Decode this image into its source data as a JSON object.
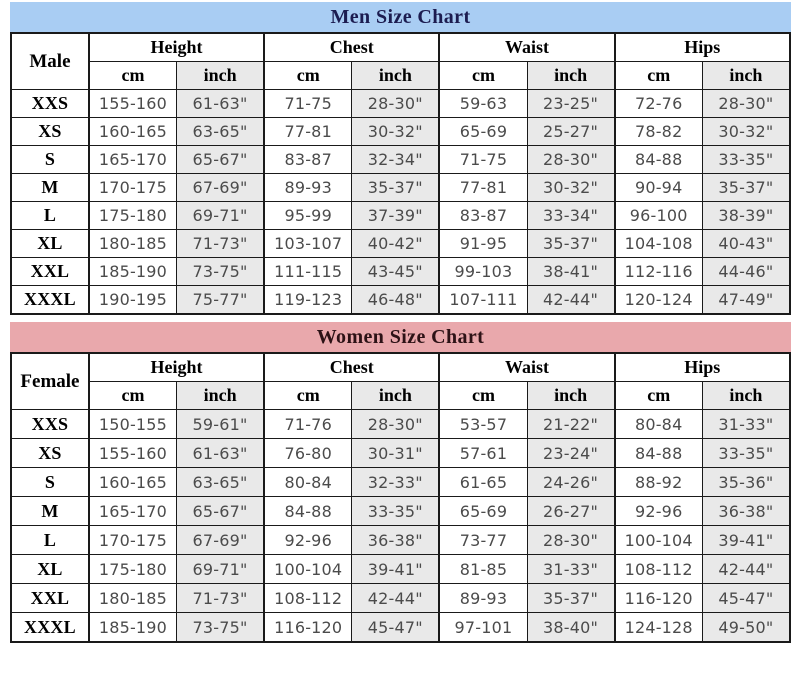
{
  "colors": {
    "men_title_bg": "#a9cdf3",
    "men_title_text": "#1c1c50",
    "women_title_bg": "#e9a8ac",
    "women_title_text": "#2d1216",
    "inch_column_bg": "#e9e9e9",
    "border": "#1a1a1a",
    "data_text": "#4b4b4b"
  },
  "men": {
    "title": "Men Size Chart",
    "corner_label": "Male",
    "groups": [
      "Height",
      "Chest",
      "Waist",
      "Hips"
    ],
    "subcolumns": [
      "cm",
      "inch"
    ],
    "rows": [
      {
        "size": "XXS",
        "cells": [
          "155-160",
          "61-63\"",
          "71-75",
          "28-30\"",
          "59-63",
          "23-25\"",
          "72-76",
          "28-30\""
        ]
      },
      {
        "size": "XS",
        "cells": [
          "160-165",
          "63-65\"",
          "77-81",
          "30-32\"",
          "65-69",
          "25-27\"",
          "78-82",
          "30-32\""
        ]
      },
      {
        "size": "S",
        "cells": [
          "165-170",
          "65-67\"",
          "83-87",
          "32-34\"",
          "71-75",
          "28-30\"",
          "84-88",
          "33-35\""
        ]
      },
      {
        "size": "M",
        "cells": [
          "170-175",
          "67-69\"",
          "89-93",
          "35-37\"",
          "77-81",
          "30-32\"",
          "90-94",
          "35-37\""
        ]
      },
      {
        "size": "L",
        "cells": [
          "175-180",
          "69-71\"",
          "95-99",
          "37-39\"",
          "83-87",
          "33-34\"",
          "96-100",
          "38-39\""
        ]
      },
      {
        "size": "XL",
        "cells": [
          "180-185",
          "71-73\"",
          "103-107",
          "40-42\"",
          "91-95",
          "35-37\"",
          "104-108",
          "40-43\""
        ]
      },
      {
        "size": "XXL",
        "cells": [
          "185-190",
          "73-75\"",
          "111-115",
          "43-45\"",
          "99-103",
          "38-41\"",
          "112-116",
          "44-46\""
        ]
      },
      {
        "size": "XXXL",
        "cells": [
          "190-195",
          "75-77\"",
          "119-123",
          "46-48\"",
          "107-111",
          "42-44\"",
          "120-124",
          "47-49\""
        ]
      }
    ]
  },
  "women": {
    "title": "Women Size Chart",
    "corner_label": "Female",
    "groups": [
      "Height",
      "Chest",
      "Waist",
      "Hips"
    ],
    "subcolumns": [
      "cm",
      "inch"
    ],
    "rows": [
      {
        "size": "XXS",
        "cells": [
          "150-155",
          "59-61\"",
          "71-76",
          "28-30\"",
          "53-57",
          "21-22\"",
          "80-84",
          "31-33\""
        ]
      },
      {
        "size": "XS",
        "cells": [
          "155-160",
          "61-63\"",
          "76-80",
          "30-31\"",
          "57-61",
          "23-24\"",
          "84-88",
          "33-35\""
        ]
      },
      {
        "size": "S",
        "cells": [
          "160-165",
          "63-65\"",
          "80-84",
          "32-33\"",
          "61-65",
          "24-26\"",
          "88-92",
          "35-36\""
        ]
      },
      {
        "size": "M",
        "cells": [
          "165-170",
          "65-67\"",
          "84-88",
          "33-35\"",
          "65-69",
          "26-27\"",
          "92-96",
          "36-38\""
        ]
      },
      {
        "size": "L",
        "cells": [
          "170-175",
          "67-69\"",
          "92-96",
          "36-38\"",
          "73-77",
          "28-30\"",
          "100-104",
          "39-41\""
        ]
      },
      {
        "size": "XL",
        "cells": [
          "175-180",
          "69-71\"",
          "100-104",
          "39-41\"",
          "81-85",
          "31-33\"",
          "108-112",
          "42-44\""
        ]
      },
      {
        "size": "XXL",
        "cells": [
          "180-185",
          "71-73\"",
          "108-112",
          "42-44\"",
          "89-93",
          "35-37\"",
          "116-120",
          "45-47\""
        ]
      },
      {
        "size": "XXXL",
        "cells": [
          "185-190",
          "73-75\"",
          "116-120",
          "45-47\"",
          "97-101",
          "38-40\"",
          "124-128",
          "49-50\""
        ]
      }
    ]
  }
}
